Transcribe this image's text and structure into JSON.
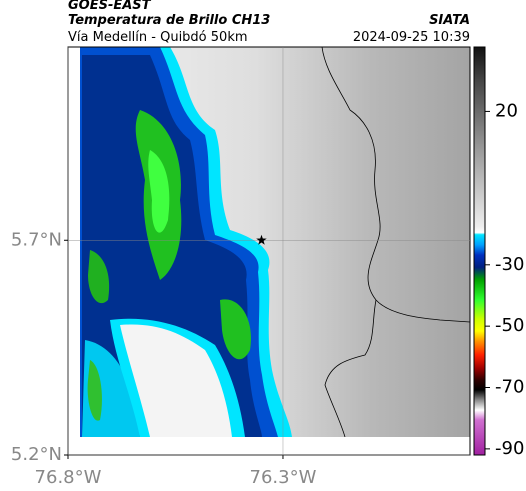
{
  "header": {
    "title": "GOES-EAST",
    "subtitle": "Temperatura de Brillo CH13",
    "route": "Vía Medellín - Quibdó 50km",
    "source": "SIATA",
    "timestamp": "2024-09-25 10:39"
  },
  "map": {
    "xlim": [
      -76.8,
      -75.865
    ],
    "ylim": [
      5.2,
      6.15
    ],
    "xticks": [
      {
        "value": -76.8,
        "label": "76.8°W"
      },
      {
        "value": -76.3,
        "label": "76.3°W"
      }
    ],
    "yticks": [
      {
        "value": 5.2,
        "label": "5.2°N"
      },
      {
        "value": 5.7,
        "label": "5.7°N"
      }
    ],
    "grid": true,
    "marker": {
      "lon": -76.35,
      "lat": 5.7
    }
  },
  "colorbar": {
    "clim": [
      -92,
      41
    ],
    "ticks": [
      20,
      -30,
      -50,
      -70,
      -90
    ]
  }
}
